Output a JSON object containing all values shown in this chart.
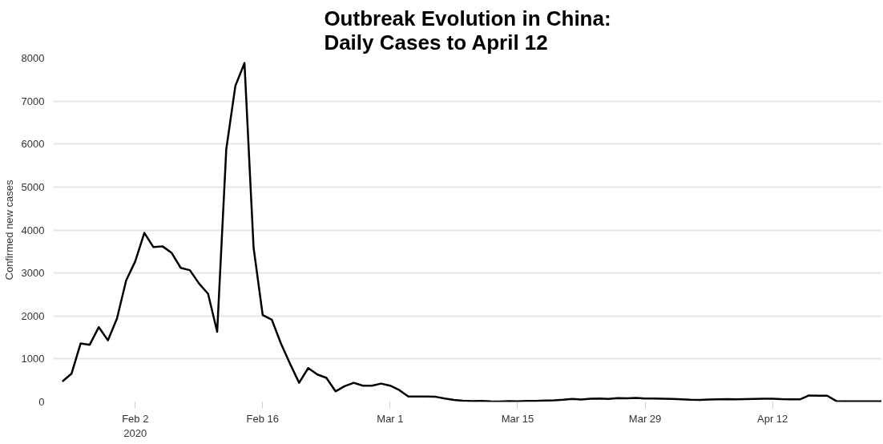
{
  "chart_data": {
    "type": "line",
    "title": "Outbreak Evolution in China:\nDaily Cases to April 12",
    "ylabel": "Confirmed new cases",
    "x": [
      "2020-01-25",
      "2020-01-26",
      "2020-01-27",
      "2020-01-28",
      "2020-01-29",
      "2020-01-30",
      "2020-01-31",
      "2020-02-01",
      "2020-02-02",
      "2020-02-03",
      "2020-02-04",
      "2020-02-05",
      "2020-02-06",
      "2020-02-07",
      "2020-02-08",
      "2020-02-09",
      "2020-02-10",
      "2020-02-11",
      "2020-02-12",
      "2020-02-13",
      "2020-02-14",
      "2020-02-15",
      "2020-02-16",
      "2020-02-17",
      "2020-02-18",
      "2020-02-19",
      "2020-02-20",
      "2020-02-21",
      "2020-02-22",
      "2020-02-23",
      "2020-02-24",
      "2020-02-25",
      "2020-02-26",
      "2020-02-27",
      "2020-02-28",
      "2020-02-29",
      "2020-03-01",
      "2020-03-02",
      "2020-03-03",
      "2020-03-04",
      "2020-03-05",
      "2020-03-06",
      "2020-03-07",
      "2020-03-08",
      "2020-03-09",
      "2020-03-10",
      "2020-03-11",
      "2020-03-12",
      "2020-03-13",
      "2020-03-14",
      "2020-03-15",
      "2020-03-16",
      "2020-03-17",
      "2020-03-18",
      "2020-03-19",
      "2020-03-20",
      "2020-03-21",
      "2020-03-22",
      "2020-03-23",
      "2020-03-24",
      "2020-03-25",
      "2020-03-26",
      "2020-03-27",
      "2020-03-28",
      "2020-03-29",
      "2020-03-30",
      "2020-03-31",
      "2020-04-01",
      "2020-04-02",
      "2020-04-03",
      "2020-04-04",
      "2020-04-05",
      "2020-04-06",
      "2020-04-07",
      "2020-04-08",
      "2020-04-09",
      "2020-04-10",
      "2020-04-11",
      "2020-04-12",
      "2020-04-13",
      "2020-04-14",
      "2020-04-15",
      "2020-04-16",
      "2020-04-17",
      "2020-04-18",
      "2020-04-19",
      "2020-04-20",
      "2020-04-21",
      "2020-04-22",
      "2020-04-23",
      "2020-04-24"
    ],
    "series": [
      {
        "color": "#000000",
        "values": [
          475,
          656,
          1361,
          1330,
          1740,
          1433,
          1945,
          2825,
          3270,
          3933,
          3602,
          3620,
          3468,
          3119,
          3065,
          2758,
          2517,
          1632,
          5879,
          7354,
          7885,
          3589,
          2022,
          1914,
          1361,
          891,
          445,
          788,
          638,
          559,
          246,
          367,
          445,
          378,
          378,
          427,
          378,
          277,
          125,
          125,
          125,
          119,
          78,
          47,
          29,
          20,
          24,
          15,
          11,
          20,
          16,
          21,
          25,
          34,
          39,
          50,
          68,
          55,
          75,
          80,
          70,
          90,
          85,
          95,
          80,
          80,
          75,
          70,
          60,
          50,
          45,
          55,
          60,
          65,
          60,
          65,
          70,
          75,
          75,
          65,
          60,
          60,
          150,
          145,
          145,
          20,
          15,
          15,
          15,
          15,
          15
        ]
      }
    ],
    "xlim": [
      "2020-01-24",
      "2020-04-24"
    ],
    "xticks": [
      {
        "value": "2020-02-02",
        "label": "Feb 2\n2020"
      },
      {
        "value": "2020-02-16",
        "label": "Feb 16"
      },
      {
        "value": "2020-03-01",
        "label": "Mar 1"
      },
      {
        "value": "2020-03-15",
        "label": "Mar 15"
      },
      {
        "value": "2020-03-29",
        "label": "Mar 29"
      },
      {
        "value": "2020-04-12",
        "label": "Apr 12"
      }
    ],
    "ylim": [
      0,
      8000
    ],
    "yticks": [
      0,
      1000,
      2000,
      3000,
      4000,
      5000,
      6000,
      7000,
      8000
    ],
    "grid": "y",
    "marker": "none",
    "line_style": "solid"
  }
}
